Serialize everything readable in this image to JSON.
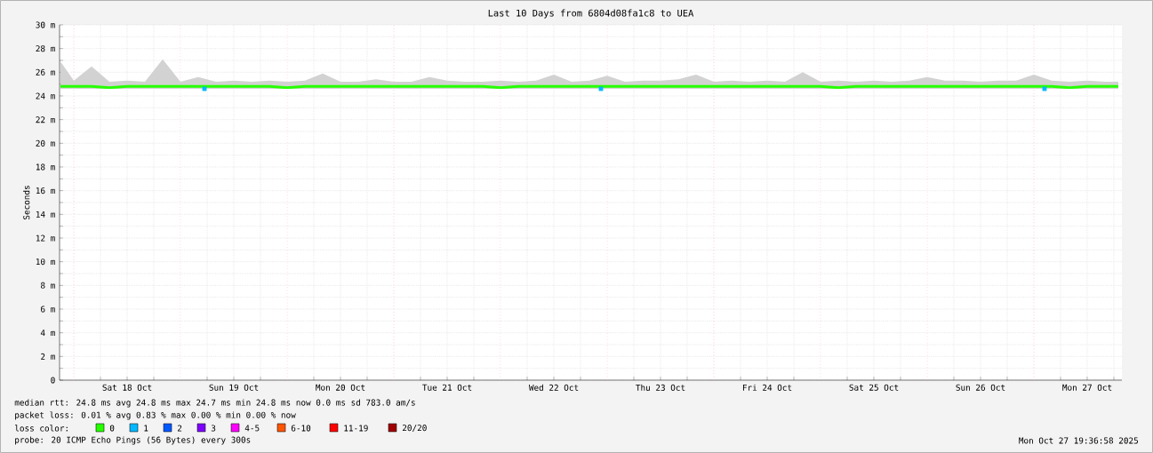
{
  "chart_data": {
    "type": "line",
    "title": "Last 10 Days from 6804d08fa1c8 to UEA",
    "ylabel": "Seconds",
    "legend_title": "loss color:",
    "legend": "bottom",
    "grid": true,
    "line_style": "solid",
    "x": [
      "2025-10-17T21:00",
      "2025-10-18T00:00",
      "2025-10-18T04:00",
      "2025-10-18T08:00",
      "2025-10-18T12:00",
      "2025-10-18T16:00",
      "2025-10-18T20:00",
      "2025-10-19T00:00",
      "2025-10-19T04:00",
      "2025-10-19T08:00",
      "2025-10-19T12:00",
      "2025-10-19T16:00",
      "2025-10-19T20:00",
      "2025-10-20T00:00",
      "2025-10-20T04:00",
      "2025-10-20T08:00",
      "2025-10-20T12:00",
      "2025-10-20T16:00",
      "2025-10-20T20:00",
      "2025-10-21T00:00",
      "2025-10-21T04:00",
      "2025-10-21T08:00",
      "2025-10-21T12:00",
      "2025-10-21T16:00",
      "2025-10-21T20:00",
      "2025-10-22T00:00",
      "2025-10-22T04:00",
      "2025-10-22T08:00",
      "2025-10-22T12:00",
      "2025-10-22T16:00",
      "2025-10-22T20:00",
      "2025-10-23T00:00",
      "2025-10-23T04:00",
      "2025-10-23T08:00",
      "2025-10-23T12:00",
      "2025-10-23T16:00",
      "2025-10-23T20:00",
      "2025-10-24T00:00",
      "2025-10-24T04:00",
      "2025-10-24T08:00",
      "2025-10-24T12:00",
      "2025-10-24T16:00",
      "2025-10-24T20:00",
      "2025-10-25T00:00",
      "2025-10-25T04:00",
      "2025-10-25T08:00",
      "2025-10-25T12:00",
      "2025-10-25T16:00",
      "2025-10-25T20:00",
      "2025-10-26T00:00",
      "2025-10-26T04:00",
      "2025-10-26T08:00",
      "2025-10-26T12:00",
      "2025-10-26T16:00",
      "2025-10-26T20:00",
      "2025-10-27T00:00",
      "2025-10-27T04:00",
      "2025-10-27T08:00",
      "2025-10-27T12:00",
      "2025-10-27T16:00",
      "2025-10-27T19:00"
    ],
    "xlim": [
      "2025-10-17T20:48",
      "2025-10-27T19:48"
    ],
    "xticks": [
      {
        "value": "2025-10-18T06:00",
        "label": null
      },
      {
        "value": "2025-10-18T12:00",
        "label": "Sat 18 Oct"
      },
      {
        "value": "2025-10-18T18:00",
        "label": null
      },
      {
        "value": "2025-10-19T06:00",
        "label": null
      },
      {
        "value": "2025-10-19T12:00",
        "label": "Sun 19 Oct"
      },
      {
        "value": "2025-10-19T18:00",
        "label": null
      },
      {
        "value": "2025-10-20T06:00",
        "label": null
      },
      {
        "value": "2025-10-20T12:00",
        "label": "Mon 20 Oct"
      },
      {
        "value": "2025-10-20T18:00",
        "label": null
      },
      {
        "value": "2025-10-21T06:00",
        "label": null
      },
      {
        "value": "2025-10-21T12:00",
        "label": "Tue 21 Oct"
      },
      {
        "value": "2025-10-21T18:00",
        "label": null
      },
      {
        "value": "2025-10-22T06:00",
        "label": null
      },
      {
        "value": "2025-10-22T12:00",
        "label": "Wed 22 Oct"
      },
      {
        "value": "2025-10-22T18:00",
        "label": null
      },
      {
        "value": "2025-10-23T06:00",
        "label": null
      },
      {
        "value": "2025-10-23T12:00",
        "label": "Thu 23 Oct"
      },
      {
        "value": "2025-10-23T18:00",
        "label": null
      },
      {
        "value": "2025-10-24T06:00",
        "label": null
      },
      {
        "value": "2025-10-24T12:00",
        "label": "Fri 24 Oct"
      },
      {
        "value": "2025-10-24T18:00",
        "label": null
      },
      {
        "value": "2025-10-25T06:00",
        "label": null
      },
      {
        "value": "2025-10-25T12:00",
        "label": "Sat 25 Oct"
      },
      {
        "value": "2025-10-25T18:00",
        "label": null
      },
      {
        "value": "2025-10-26T06:00",
        "label": null
      },
      {
        "value": "2025-10-26T12:00",
        "label": "Sun 26 Oct"
      },
      {
        "value": "2025-10-26T18:00",
        "label": null
      },
      {
        "value": "2025-10-27T06:00",
        "label": null
      },
      {
        "value": "2025-10-27T12:00",
        "label": "Mon 27 Oct"
      },
      {
        "value": "2025-10-27T18:00",
        "label": null
      }
    ],
    "ylim": [
      0,
      30
    ],
    "yticks": [
      {
        "value": 0,
        "label": "0"
      },
      {
        "value": 1,
        "label": null
      },
      {
        "value": 2,
        "label": "2 m"
      },
      {
        "value": 3,
        "label": null
      },
      {
        "value": 4,
        "label": "4 m"
      },
      {
        "value": 5,
        "label": null
      },
      {
        "value": 6,
        "label": "6 m"
      },
      {
        "value": 7,
        "label": null
      },
      {
        "value": 8,
        "label": "8 m"
      },
      {
        "value": 9,
        "label": null
      },
      {
        "value": 10,
        "label": "10 m"
      },
      {
        "value": 11,
        "label": null
      },
      {
        "value": 12,
        "label": "12 m"
      },
      {
        "value": 13,
        "label": null
      },
      {
        "value": 14,
        "label": "14 m"
      },
      {
        "value": 15,
        "label": null
      },
      {
        "value": 16,
        "label": "16 m"
      },
      {
        "value": 17,
        "label": null
      },
      {
        "value": 18,
        "label": "18 m"
      },
      {
        "value": 19,
        "label": null
      },
      {
        "value": 20,
        "label": "20 m"
      },
      {
        "value": 21,
        "label": null
      },
      {
        "value": 22,
        "label": "22 m"
      },
      {
        "value": 23,
        "label": null
      },
      {
        "value": 24,
        "label": "24 m"
      },
      {
        "value": 25,
        "label": null
      },
      {
        "value": 26,
        "label": "26 m"
      },
      {
        "value": 27,
        "label": null
      },
      {
        "value": 28,
        "label": "28 m"
      },
      {
        "value": 29,
        "label": null
      },
      {
        "value": 30,
        "label": "30 m"
      }
    ],
    "ref_lines": [
      {
        "axis": "x",
        "value": "2025-10-18T00:00",
        "color": "#ffb0b0",
        "line_style": "dotted"
      },
      {
        "axis": "x",
        "value": "2025-10-19T00:00",
        "color": "#ffb0b0",
        "line_style": "dotted"
      },
      {
        "axis": "x",
        "value": "2025-10-20T00:00",
        "color": "#ffb0b0",
        "line_style": "dotted"
      },
      {
        "axis": "x",
        "value": "2025-10-21T00:00",
        "color": "#ffb0b0",
        "line_style": "dotted"
      },
      {
        "axis": "x",
        "value": "2025-10-22T00:00",
        "color": "#ffb0b0",
        "line_style": "dotted"
      },
      {
        "axis": "x",
        "value": "2025-10-23T00:00",
        "color": "#ffb0b0",
        "line_style": "dotted"
      },
      {
        "axis": "x",
        "value": "2025-10-24T00:00",
        "color": "#ffb0b0",
        "line_style": "dotted"
      },
      {
        "axis": "x",
        "value": "2025-10-25T00:00",
        "color": "#ffb0b0",
        "line_style": "dotted"
      },
      {
        "axis": "x",
        "value": "2025-10-26T00:00",
        "color": "#ffb0b0",
        "line_style": "dotted"
      },
      {
        "axis": "x",
        "value": "2025-10-27T00:00",
        "color": "#ffb0b0",
        "line_style": "dotted"
      }
    ],
    "series": [
      {
        "name": "0",
        "color": "#26ff00",
        "values": [
          24.8,
          24.8,
          24.8,
          24.7,
          24.8,
          24.8,
          24.8,
          24.8,
          24.8,
          24.8,
          24.8,
          24.8,
          24.8,
          24.7,
          24.8,
          24.8,
          24.8,
          24.8,
          24.8,
          24.8,
          24.8,
          24.8,
          24.8,
          24.8,
          24.8,
          24.7,
          24.8,
          24.8,
          24.8,
          24.8,
          24.8,
          24.8,
          24.8,
          24.8,
          24.8,
          24.8,
          24.8,
          24.8,
          24.8,
          24.8,
          24.8,
          24.8,
          24.8,
          24.8,
          24.7,
          24.8,
          24.8,
          24.8,
          24.8,
          24.8,
          24.8,
          24.8,
          24.8,
          24.8,
          24.8,
          24.8,
          24.8,
          24.7,
          24.8,
          24.8,
          24.8
        ],
        "lower": [
          24.6,
          24.6,
          24.6,
          24.6,
          24.6,
          24.6,
          24.6,
          24.6,
          24.6,
          24.6,
          24.6,
          24.6,
          24.6,
          24.6,
          24.6,
          24.6,
          24.6,
          24.6,
          24.6,
          24.6,
          24.6,
          24.6,
          24.6,
          24.6,
          24.6,
          24.6,
          24.6,
          24.6,
          24.6,
          24.6,
          24.6,
          24.6,
          24.6,
          24.6,
          24.6,
          24.6,
          24.6,
          24.6,
          24.6,
          24.6,
          24.6,
          24.6,
          24.6,
          24.6,
          24.6,
          24.6,
          24.6,
          24.6,
          24.6,
          24.6,
          24.6,
          24.6,
          24.6,
          24.6,
          24.6,
          24.6,
          24.6,
          24.6,
          24.6,
          24.6,
          24.6
        ],
        "upper": [
          26.9,
          25.3,
          26.5,
          25.2,
          25.3,
          25.2,
          27.1,
          25.2,
          25.6,
          25.2,
          25.3,
          25.2,
          25.3,
          25.2,
          25.3,
          25.9,
          25.2,
          25.2,
          25.4,
          25.2,
          25.2,
          25.6,
          25.3,
          25.2,
          25.2,
          25.3,
          25.2,
          25.3,
          25.8,
          25.2,
          25.3,
          25.7,
          25.2,
          25.3,
          25.3,
          25.4,
          25.8,
          25.2,
          25.3,
          25.2,
          25.3,
          25.2,
          26.0,
          25.2,
          25.3,
          25.2,
          25.3,
          25.2,
          25.3,
          25.6,
          25.3,
          25.3,
          25.2,
          25.3,
          25.3,
          25.8,
          25.3,
          25.2,
          25.3,
          25.2,
          25.2
        ]
      },
      {
        "name": "1",
        "color": "#00b8ff",
        "type": "scatter",
        "marker": "square",
        "x": [
          "2025-10-19T05:24",
          "2025-10-22T22:36",
          "2025-10-27T02:24"
        ],
        "values": [
          24.6,
          24.6,
          24.6
        ]
      },
      {
        "name": "2",
        "color": "#0059ff",
        "type": "scatter",
        "values": [
          null,
          null,
          null,
          null,
          null,
          null,
          null,
          null,
          null,
          null,
          null,
          null,
          null,
          null,
          null,
          null,
          null,
          null,
          null,
          null,
          null,
          null,
          null,
          null,
          null,
          null,
          null,
          null,
          null,
          null,
          null,
          null,
          null,
          null,
          null,
          null,
          null,
          null,
          null,
          null,
          null,
          null,
          null,
          null,
          null,
          null,
          null,
          null,
          null,
          null,
          null,
          null,
          null,
          null,
          null,
          null,
          null,
          null,
          null,
          null,
          null
        ]
      },
      {
        "name": "3",
        "color": "#7e00ff",
        "type": "scatter",
        "values": [
          null,
          null,
          null,
          null,
          null,
          null,
          null,
          null,
          null,
          null,
          null,
          null,
          null,
          null,
          null,
          null,
          null,
          null,
          null,
          null,
          null,
          null,
          null,
          null,
          null,
          null,
          null,
          null,
          null,
          null,
          null,
          null,
          null,
          null,
          null,
          null,
          null,
          null,
          null,
          null,
          null,
          null,
          null,
          null,
          null,
          null,
          null,
          null,
          null,
          null,
          null,
          null,
          null,
          null,
          null,
          null,
          null,
          null,
          null,
          null,
          null
        ]
      },
      {
        "name": "4-5",
        "color": "#ff00ff",
        "type": "scatter",
        "values": [
          null,
          null,
          null,
          null,
          null,
          null,
          null,
          null,
          null,
          null,
          null,
          null,
          null,
          null,
          null,
          null,
          null,
          null,
          null,
          null,
          null,
          null,
          null,
          null,
          null,
          null,
          null,
          null,
          null,
          null,
          null,
          null,
          null,
          null,
          null,
          null,
          null,
          null,
          null,
          null,
          null,
          null,
          null,
          null,
          null,
          null,
          null,
          null,
          null,
          null,
          null,
          null,
          null,
          null,
          null,
          null,
          null,
          null,
          null,
          null,
          null
        ]
      },
      {
        "name": "6-10",
        "color": "#ff5500",
        "type": "scatter",
        "values": [
          null,
          null,
          null,
          null,
          null,
          null,
          null,
          null,
          null,
          null,
          null,
          null,
          null,
          null,
          null,
          null,
          null,
          null,
          null,
          null,
          null,
          null,
          null,
          null,
          null,
          null,
          null,
          null,
          null,
          null,
          null,
          null,
          null,
          null,
          null,
          null,
          null,
          null,
          null,
          null,
          null,
          null,
          null,
          null,
          null,
          null,
          null,
          null,
          null,
          null,
          null,
          null,
          null,
          null,
          null,
          null,
          null,
          null,
          null,
          null,
          null
        ]
      },
      {
        "name": "11-19",
        "color": "#ff0000",
        "type": "scatter",
        "values": [
          null,
          null,
          null,
          null,
          null,
          null,
          null,
          null,
          null,
          null,
          null,
          null,
          null,
          null,
          null,
          null,
          null,
          null,
          null,
          null,
          null,
          null,
          null,
          null,
          null,
          null,
          null,
          null,
          null,
          null,
          null,
          null,
          null,
          null,
          null,
          null,
          null,
          null,
          null,
          null,
          null,
          null,
          null,
          null,
          null,
          null,
          null,
          null,
          null,
          null,
          null,
          null,
          null,
          null,
          null,
          null,
          null,
          null,
          null,
          null,
          null
        ]
      },
      {
        "name": "20/20",
        "color": "#a10000",
        "type": "scatter",
        "values": [
          null,
          null,
          null,
          null,
          null,
          null,
          null,
          null,
          null,
          null,
          null,
          null,
          null,
          null,
          null,
          null,
          null,
          null,
          null,
          null,
          null,
          null,
          null,
          null,
          null,
          null,
          null,
          null,
          null,
          null,
          null,
          null,
          null,
          null,
          null,
          null,
          null,
          null,
          null,
          null,
          null,
          null,
          null,
          null,
          null,
          null,
          null,
          null,
          null,
          null,
          null,
          null,
          null,
          null,
          null,
          null,
          null,
          null,
          null,
          null,
          null
        ]
      }
    ],
    "annotations": [
      "median rtt:  24.8 ms avg  24.8 ms max  24.7 ms min  24.8 ms now  0.0 ms sd  783.0   am/s",
      "packet loss: 0.01 % avg  0.83 % max  0.00 % min  0.00 % now",
      "probe:       20 ICMP Echo Pings (56 Bytes) every 300s",
      "Mon Oct 27 19:36:58 2025"
    ]
  }
}
